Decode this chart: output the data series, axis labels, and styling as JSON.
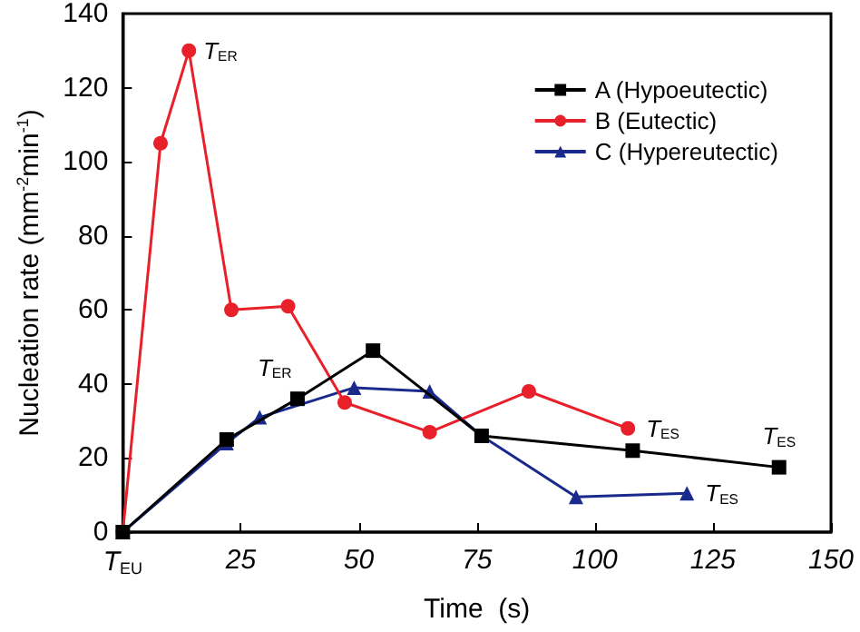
{
  "chart_data": {
    "type": "line",
    "xlabel": "Time  (s)",
    "ylabel": "Nucleation rate (mm$^{-2}$min$^{-1}$)",
    "xlim": [
      0,
      150
    ],
    "xticks": [
      {
        "value": 0,
        "label": "T$_{EU}$"
      },
      25,
      50,
      75,
      100,
      125,
      150
    ],
    "ylim": [
      0,
      140
    ],
    "yticks": [
      0,
      20,
      40,
      60,
      80,
      100,
      120,
      140
    ],
    "grid": false,
    "legend": "top right",
    "series": [
      {
        "name": "A (Hypoeutectic)",
        "color": "#000000",
        "marker": "square",
        "x": [
          0,
          22,
          37,
          53,
          76,
          108,
          139
        ],
        "values": [
          0,
          25,
          36,
          49,
          26,
          22,
          17.5
        ]
      },
      {
        "name": "B (Eutectic)",
        "color": "#e8202a",
        "marker": "circle",
        "x": [
          0,
          8,
          14,
          23,
          35,
          47,
          65,
          86,
          107
        ],
        "values": [
          0,
          105,
          130,
          60,
          61,
          35,
          27,
          38,
          28
        ]
      },
      {
        "name": "C (Hypereutectic)",
        "color": "#1a2a8c",
        "marker": "triangle",
        "x": [
          0,
          22,
          29,
          49,
          65,
          76,
          96,
          119.5
        ],
        "values": [
          0,
          24,
          31,
          39,
          38,
          26,
          9.5,
          10.5
        ]
      }
    ],
    "annotations": [
      {
        "text": "T$_{ER}$",
        "x": 14,
        "y": 130
      },
      {
        "text": "T$_{ER}$",
        "x": 37,
        "y": 36
      },
      {
        "text": "T$_{ES}$",
        "x": 107,
        "y": 28
      },
      {
        "text": "T$_{ES}$",
        "x": 139,
        "y": 17.5
      },
      {
        "text": "T$_{ES}$",
        "x": 119.5,
        "y": 10.5
      }
    ]
  }
}
